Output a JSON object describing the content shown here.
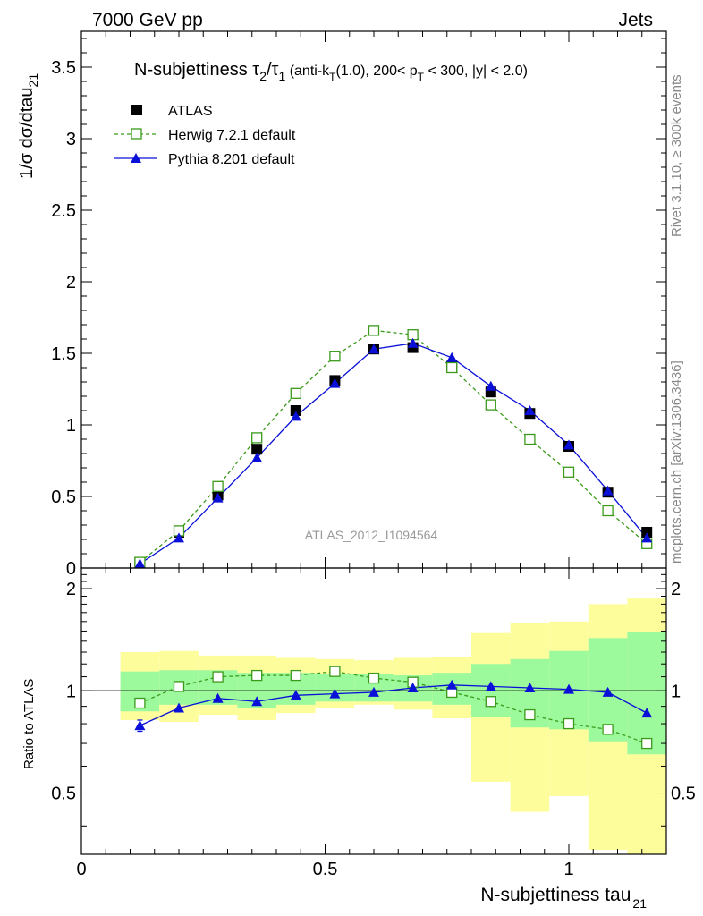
{
  "header": {
    "left": "7000 GeV pp",
    "right": "Jets"
  },
  "side_labels": {
    "rivet": "Rivet 3.1.10, ≥ 300k events",
    "mcplots": "mcplots.cern.ch [arXiv:1306.3436]"
  },
  "watermark": "ATLAS_2012_I1094564",
  "plot_title": {
    "main": "N-subjettiness τ",
    "sub1": "2",
    "slash": "/τ",
    "sub2": "1",
    "detail_a": " (anti-k",
    "detail_t": "T",
    "detail_b": "(1.0), 200< p",
    "detail_pt": "T",
    "detail_c": " < 300, |y| < 2.0)"
  },
  "colors": {
    "atlas": "#000000",
    "herwig": "#3a9a1a",
    "pythia": "#0a10d8",
    "band_stat": "#9cf99c",
    "band_total": "#fdfd9c"
  },
  "chart_data": {
    "type": "line",
    "x_label_main": "N-subjettiness tau",
    "x_label_sub": "21",
    "y_label_main": "1/σ dσ/dtau",
    "y_label_sub": "21",
    "ratio_ylabel": "Ratio to ATLAS",
    "xlim": [
      0,
      1.2
    ],
    "ylim": [
      0,
      3.75
    ],
    "ratio_ylim": [
      0.33,
      2.3
    ],
    "x_ticks": [
      0,
      0.5,
      1
    ],
    "x_tick_labels": [
      "0",
      "0.5",
      "1"
    ],
    "y_ticks": [
      0,
      0.5,
      1,
      1.5,
      2,
      2.5,
      3,
      3.5
    ],
    "y_tick_labels": [
      "0",
      "0.5",
      "1",
      "1.5",
      "2",
      "2.5",
      "3",
      "3.5"
    ],
    "ratio_ticks": [
      0.5,
      1,
      2
    ],
    "ratio_tick_labels": [
      "0.5",
      "1",
      "2"
    ],
    "legend_position": "top-left",
    "bin_edges": [
      0.08,
      0.16,
      0.24,
      0.32,
      0.4,
      0.48,
      0.56,
      0.64,
      0.72,
      0.8,
      0.88,
      0.96,
      1.04,
      1.12,
      1.2
    ],
    "x": [
      0.12,
      0.2,
      0.28,
      0.36,
      0.44,
      0.52,
      0.6,
      0.68,
      0.76,
      0.84,
      0.92,
      1.0,
      1.08,
      1.16
    ],
    "series": [
      {
        "name": "ATLAS",
        "style": "data",
        "values": [
          0.04,
          0.25,
          0.51,
          0.83,
          1.1,
          1.31,
          1.53,
          1.54,
          1.41,
          1.23,
          1.08,
          0.85,
          0.53,
          0.25
        ]
      },
      {
        "name": "Herwig 7.2.1 default",
        "style": "open-square-dashed",
        "values": [
          0.04,
          0.26,
          0.57,
          0.91,
          1.22,
          1.48,
          1.66,
          1.63,
          1.4,
          1.14,
          0.9,
          0.67,
          0.4,
          0.17
        ]
      },
      {
        "name": "Pythia 8.201 default",
        "style": "triangle-solid",
        "values": [
          0.03,
          0.21,
          0.49,
          0.77,
          1.06,
          1.29,
          1.53,
          1.57,
          1.47,
          1.27,
          1.1,
          0.86,
          0.54,
          0.21
        ]
      }
    ],
    "ratio": {
      "herwig": [
        0.92,
        1.03,
        1.1,
        1.11,
        1.11,
        1.14,
        1.09,
        1.06,
        0.99,
        0.93,
        0.85,
        0.8,
        0.77,
        0.7
      ],
      "pythia": [
        0.79,
        0.89,
        0.95,
        0.93,
        0.97,
        0.98,
        0.99,
        1.02,
        1.04,
        1.03,
        1.02,
        1.01,
        0.99,
        0.86
      ],
      "pythia_err": [
        0.03,
        0,
        0,
        0,
        0,
        0,
        0,
        0,
        0,
        0,
        0,
        0,
        0,
        0
      ],
      "band_stat_lo": [
        0.87,
        0.91,
        0.91,
        0.89,
        0.91,
        0.93,
        0.93,
        0.93,
        0.91,
        0.84,
        0.78,
        0.77,
        0.71,
        0.65
      ],
      "band_stat_hi": [
        1.14,
        1.15,
        1.15,
        1.13,
        1.13,
        1.12,
        1.12,
        1.11,
        1.13,
        1.2,
        1.24,
        1.31,
        1.43,
        1.49
      ],
      "band_tot_lo": [
        0.82,
        0.81,
        0.85,
        0.82,
        0.86,
        0.89,
        0.91,
        0.88,
        0.83,
        0.54,
        0.44,
        0.49,
        0.34,
        0.33
      ],
      "band_tot_hi": [
        1.3,
        1.31,
        1.27,
        1.27,
        1.25,
        1.24,
        1.23,
        1.25,
        1.26,
        1.48,
        1.58,
        1.6,
        1.8,
        1.87
      ]
    }
  }
}
